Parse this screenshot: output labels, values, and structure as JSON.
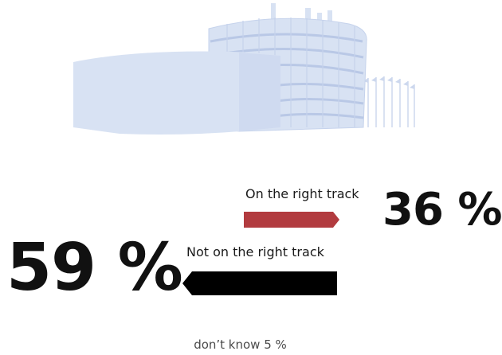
{
  "chart_data": {
    "type": "bar",
    "orientation": "horizontal-arrows",
    "unit": "%",
    "categories": [
      "On the right track",
      "Not on the right track",
      "don’t know"
    ],
    "values": [
      36,
      59,
      5
    ],
    "colors": {
      "on_track": "#b23b3f",
      "not_on_track": "#000000",
      "illustration": "#d8e2f3"
    }
  },
  "on_track": {
    "label": "On the right track",
    "value_text": "36 %"
  },
  "not_on_track": {
    "label": "Not on the right track",
    "value_text": "59 %"
  },
  "dont_know": {
    "label": "don’t know 5 %"
  }
}
